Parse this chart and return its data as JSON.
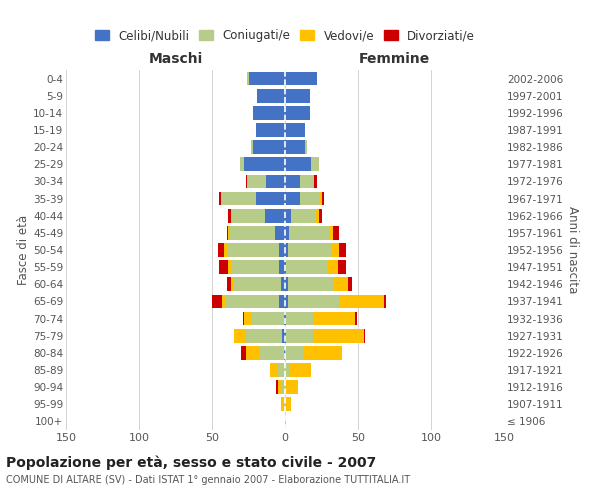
{
  "age_groups": [
    "100+",
    "95-99",
    "90-94",
    "85-89",
    "80-84",
    "75-79",
    "70-74",
    "65-69",
    "60-64",
    "55-59",
    "50-54",
    "45-49",
    "40-44",
    "35-39",
    "30-34",
    "25-29",
    "20-24",
    "15-19",
    "10-14",
    "5-9",
    "0-4"
  ],
  "birth_years": [
    "≤ 1906",
    "1907-1911",
    "1912-1916",
    "1917-1921",
    "1922-1926",
    "1927-1931",
    "1932-1936",
    "1937-1941",
    "1942-1946",
    "1947-1951",
    "1952-1956",
    "1957-1961",
    "1962-1966",
    "1967-1971",
    "1972-1976",
    "1977-1981",
    "1982-1986",
    "1987-1991",
    "1992-1996",
    "1997-2001",
    "2002-2006"
  ],
  "male": {
    "celibi": [
      0,
      0,
      0,
      0,
      1,
      2,
      1,
      4,
      3,
      4,
      4,
      7,
      14,
      20,
      13,
      28,
      22,
      20,
      22,
      19,
      25
    ],
    "coniugati": [
      0,
      1,
      2,
      5,
      16,
      25,
      22,
      37,
      32,
      33,
      36,
      31,
      22,
      23,
      13,
      3,
      1,
      0,
      0,
      0,
      1
    ],
    "vedovi": [
      0,
      2,
      3,
      5,
      10,
      8,
      5,
      2,
      2,
      2,
      2,
      1,
      1,
      1,
      0,
      0,
      0,
      0,
      0,
      0,
      0
    ],
    "divorziati": [
      0,
      0,
      1,
      0,
      3,
      0,
      1,
      7,
      3,
      6,
      4,
      1,
      2,
      1,
      1,
      0,
      0,
      0,
      0,
      0,
      0
    ]
  },
  "female": {
    "nubili": [
      0,
      0,
      0,
      0,
      0,
      1,
      1,
      2,
      2,
      1,
      2,
      3,
      4,
      10,
      10,
      18,
      14,
      14,
      17,
      17,
      22
    ],
    "coniugate": [
      0,
      0,
      1,
      3,
      12,
      19,
      18,
      36,
      31,
      28,
      30,
      27,
      17,
      14,
      9,
      5,
      1,
      0,
      0,
      0,
      0
    ],
    "vedove": [
      1,
      4,
      8,
      15,
      27,
      34,
      29,
      30,
      10,
      7,
      5,
      3,
      2,
      1,
      1,
      0,
      0,
      0,
      0,
      0,
      0
    ],
    "divorziate": [
      0,
      0,
      0,
      0,
      0,
      1,
      1,
      1,
      3,
      6,
      5,
      4,
      2,
      2,
      2,
      0,
      0,
      0,
      0,
      0,
      0
    ]
  },
  "colors": {
    "celibi": "#4472c4",
    "coniugati": "#b8cc8a",
    "vedovi": "#ffc000",
    "divorziati": "#cc0000"
  },
  "xlim": 150,
  "title": "Popolazione per età, sesso e stato civile - 2007",
  "subtitle": "COMUNE DI ALTARE (SV) - Dati ISTAT 1° gennaio 2007 - Elaborazione TUTTITALIA.IT",
  "ylabel_left": "Fasce di età",
  "ylabel_right": "Anni di nascita",
  "xlabel_left": "Maschi",
  "xlabel_right": "Femmine",
  "legend_labels": [
    "Celibi/Nubili",
    "Coniugati/e",
    "Vedovi/e",
    "Divorziati/e"
  ],
  "bg_color": "#ffffff",
  "bar_height": 0.8
}
